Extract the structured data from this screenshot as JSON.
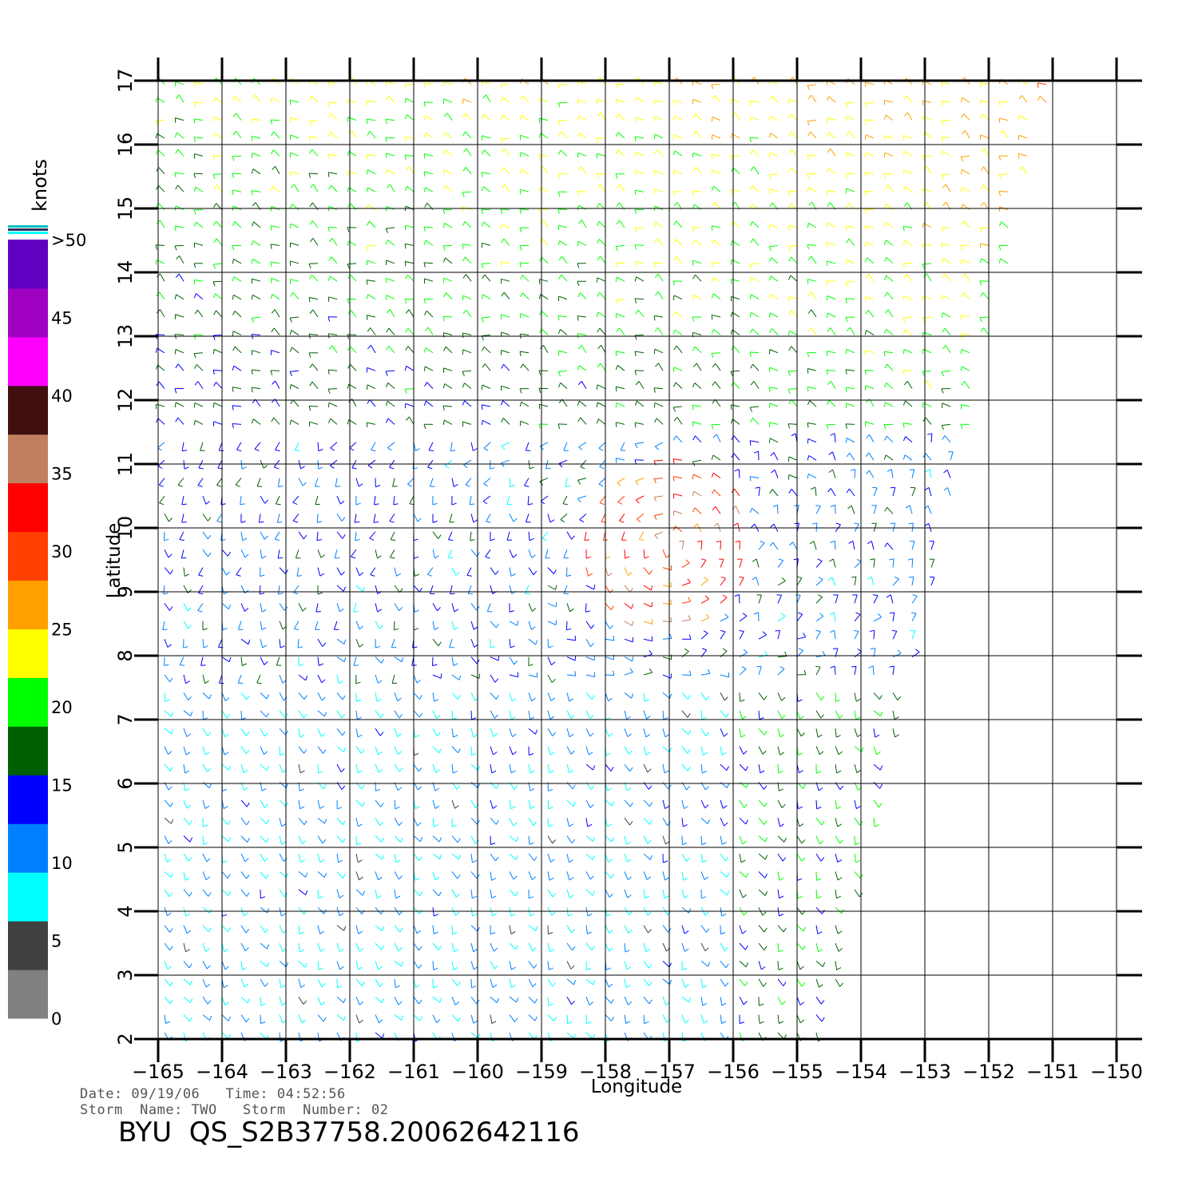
{
  "chart_data": {
    "type": "scatter",
    "subtype": "wind-barb-vector-field",
    "xlabel": "Longitude",
    "ylabel": "Latitude",
    "xlim": [
      -165,
      -150
    ],
    "ylim": [
      2,
      17
    ],
    "x_ticks": [
      "−165",
      "−164",
      "−163",
      "−162",
      "−161",
      "−160",
      "−159",
      "−158",
      "−157",
      "−156",
      "−155",
      "−154",
      "−153",
      "−152",
      "−151",
      "−150"
    ],
    "y_ticks": [
      "2",
      "3",
      "4",
      "5",
      "6",
      "7",
      "8",
      "9",
      "10",
      "11",
      "12",
      "13",
      "14",
      "15",
      "16",
      "17"
    ],
    "grid": true,
    "colorbar": {
      "label": "knots",
      "tick_labels": [
        "0",
        "5",
        "10",
        "15",
        "20",
        "25",
        "30",
        "35",
        "40",
        "45",
        ">50"
      ],
      "colors": [
        "#808080",
        "#404040",
        "#00ffff",
        "#0080ff",
        "#0000ff",
        "#006000",
        "#00ff00",
        "#ffff00",
        "#ffa000",
        "#ff4000",
        "#ff0000",
        "#c08060",
        "#401010",
        "#ff00ff",
        "#a000c0",
        "#6000c0"
      ]
    },
    "storm_center": {
      "lon": -157.0,
      "lat": 9.7
    }
  },
  "footer": {
    "date_line": "Date: 09/19/06   Time: 04:52:56",
    "storm_line": "Storm  Name: TWO   Storm  Number: 02",
    "title": "BYU  QS_S2B37758.20062642116"
  }
}
